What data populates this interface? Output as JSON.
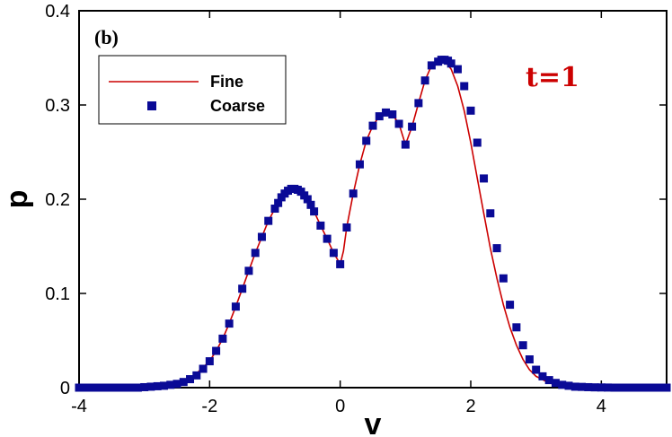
{
  "chart_data": {
    "type": "line",
    "panel_label": "(b)",
    "annotation": "t=1",
    "xlabel": "v",
    "ylabel": "p",
    "xlim": [
      -4,
      5
    ],
    "ylim": [
      0,
      0.4
    ],
    "xticks": [
      -4,
      -2,
      0,
      2,
      4
    ],
    "yticks": [
      0,
      0.1,
      0.2,
      0.3,
      0.4
    ],
    "xtick_labels": [
      "-4",
      "-2",
      "0",
      "2",
      "4"
    ],
    "ytick_labels": [
      "0",
      "0.1",
      "0.2",
      "0.3",
      "0.4"
    ],
    "legend_position": "top-left",
    "grid": false,
    "series": [
      {
        "name": "Fine",
        "style": "line",
        "color": "#cc0000",
        "x": [
          -4,
          -3.5,
          -3,
          -2.5,
          -2.25,
          -2,
          -1.9,
          -1.8,
          -1.7,
          -1.6,
          -1.5,
          -1.4,
          -1.3,
          -1.2,
          -1.1,
          -1.0,
          -0.9,
          -0.8,
          -0.7,
          -0.6,
          -0.5,
          -0.4,
          -0.3,
          -0.2,
          -0.1,
          0.0,
          0.05,
          0.1,
          0.2,
          0.3,
          0.4,
          0.5,
          0.6,
          0.7,
          0.8,
          0.9,
          1.0,
          1.1,
          1.2,
          1.3,
          1.4,
          1.5,
          1.6,
          1.7,
          1.8,
          1.9,
          2.0,
          2.1,
          2.2,
          2.3,
          2.4,
          2.5,
          2.6,
          2.7,
          2.8,
          2.9,
          3.0,
          3.2,
          3.4,
          3.6,
          3.8,
          4.0,
          4.5,
          5.0
        ],
        "y": [
          0,
          0,
          0.0005,
          0.004,
          0.012,
          0.028,
          0.039,
          0.052,
          0.068,
          0.086,
          0.105,
          0.124,
          0.143,
          0.16,
          0.177,
          0.19,
          0.202,
          0.209,
          0.211,
          0.208,
          0.2,
          0.187,
          0.172,
          0.158,
          0.143,
          0.131,
          0.145,
          0.17,
          0.206,
          0.237,
          0.262,
          0.278,
          0.288,
          0.292,
          0.29,
          0.28,
          0.258,
          0.277,
          0.302,
          0.326,
          0.342,
          0.348,
          0.347,
          0.338,
          0.32,
          0.294,
          0.26,
          0.222,
          0.185,
          0.148,
          0.116,
          0.088,
          0.064,
          0.045,
          0.03,
          0.019,
          0.012,
          0.005,
          0.002,
          0.0008,
          0.0003,
          0.0001,
          0,
          0
        ]
      },
      {
        "name": "Coarse",
        "style": "square-marker",
        "color": "#0a0a96",
        "x": [
          -4.0,
          -3.9,
          -3.8,
          -3.7,
          -3.6,
          -3.5,
          -3.4,
          -3.3,
          -3.2,
          -3.1,
          -3.0,
          -2.9,
          -2.8,
          -2.7,
          -2.6,
          -2.5,
          -2.4,
          -2.3,
          -2.2,
          -2.1,
          -2.0,
          -1.9,
          -1.8,
          -1.7,
          -1.6,
          -1.5,
          -1.4,
          -1.3,
          -1.2,
          -1.1,
          -1.0,
          -0.95,
          -0.9,
          -0.85,
          -0.8,
          -0.75,
          -0.7,
          -0.65,
          -0.6,
          -0.55,
          -0.5,
          -0.45,
          -0.4,
          -0.3,
          -0.2,
          -0.1,
          0.0,
          0.1,
          0.2,
          0.3,
          0.4,
          0.5,
          0.6,
          0.7,
          0.8,
          0.9,
          1.0,
          1.1,
          1.2,
          1.3,
          1.4,
          1.5,
          1.55,
          1.6,
          1.65,
          1.7,
          1.8,
          1.9,
          2.0,
          2.1,
          2.2,
          2.3,
          2.4,
          2.5,
          2.6,
          2.7,
          2.8,
          2.9,
          3.0,
          3.1,
          3.2,
          3.3,
          3.4,
          3.5,
          3.6,
          3.7,
          3.8,
          3.9,
          4.0,
          4.1,
          4.2,
          4.3,
          4.4,
          4.5,
          4.6,
          4.7,
          4.8,
          4.9,
          5.0
        ],
        "y": [
          0,
          0,
          0,
          0,
          0,
          0,
          0,
          0,
          0,
          0,
          0.0005,
          0.001,
          0.0015,
          0.002,
          0.003,
          0.004,
          0.006,
          0.009,
          0.013,
          0.02,
          0.028,
          0.039,
          0.052,
          0.068,
          0.086,
          0.105,
          0.124,
          0.143,
          0.16,
          0.177,
          0.19,
          0.196,
          0.202,
          0.206,
          0.209,
          0.211,
          0.211,
          0.21,
          0.208,
          0.204,
          0.2,
          0.194,
          0.187,
          0.172,
          0.158,
          0.143,
          0.131,
          0.17,
          0.206,
          0.237,
          0.262,
          0.278,
          0.288,
          0.292,
          0.29,
          0.28,
          0.258,
          0.277,
          0.302,
          0.326,
          0.342,
          0.346,
          0.348,
          0.348,
          0.347,
          0.344,
          0.338,
          0.32,
          0.294,
          0.26,
          0.222,
          0.185,
          0.148,
          0.116,
          0.088,
          0.064,
          0.045,
          0.03,
          0.019,
          0.012,
          0.008,
          0.005,
          0.003,
          0.002,
          0.001,
          0.0008,
          0.0005,
          0.0003,
          0.0002,
          0.0001,
          0,
          0,
          0,
          0,
          0,
          0,
          0,
          0,
          0
        ]
      }
    ]
  }
}
